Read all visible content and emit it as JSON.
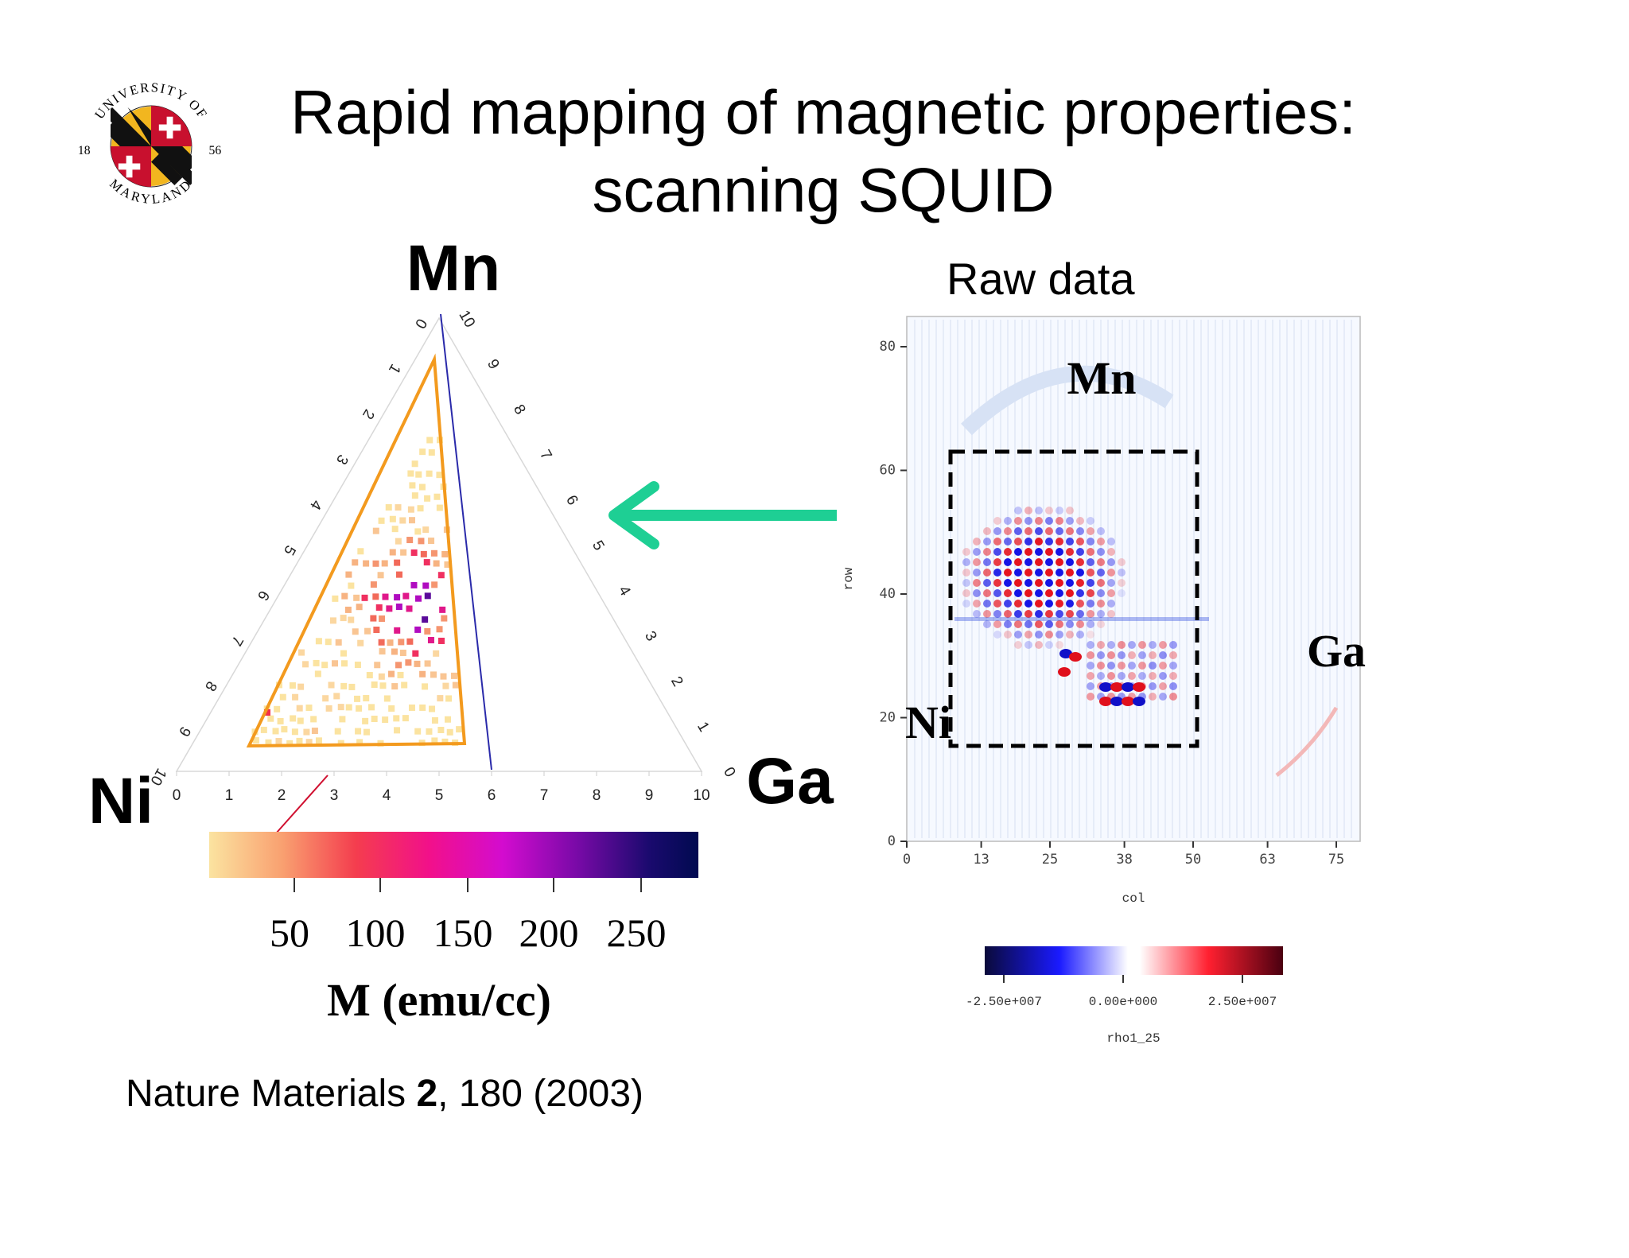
{
  "slide": {
    "title_line1": "Rapid mapping of magnetic properties:",
    "title_line2": "scanning SQUID",
    "citation_prefix": "Nature Materials ",
    "citation_bold": "2",
    "citation_suffix": ", 180 (2003)"
  },
  "seal": {
    "arc_text_top": "UNIVERSITY OF",
    "arc_text_bottom": "MARYLAND",
    "year_left": "18",
    "year_right": "56",
    "colors": {
      "red": "#c8102e",
      "gold": "#f2b61f",
      "black": "#111111",
      "white": "#ffffff"
    }
  },
  "ternary": {
    "vertex_top": "Mn",
    "vertex_left": "Ni",
    "vertex_right": "Ga",
    "bottom_ticks": [
      "0",
      "1",
      "2",
      "3",
      "4",
      "5",
      "6",
      "7",
      "8",
      "9",
      "10"
    ],
    "left_ticks": [
      "0",
      "1",
      "2",
      "3",
      "4",
      "5",
      "6",
      "7",
      "8",
      "9",
      "10"
    ],
    "right_ticks": [
      "10",
      "9",
      "8",
      "7",
      "6",
      "5",
      "4",
      "3",
      "2",
      "1",
      "0"
    ],
    "region_color": "#f39a1e",
    "line_color": "#2a2aaa",
    "colorbar": {
      "tick_labels": [
        "50",
        "100",
        "150",
        "200",
        "250"
      ],
      "label": "M (emu/cc)",
      "gradient": [
        "#fbe3a0",
        "#f9a070",
        "#f43d4e",
        "#f2108a",
        "#d30ccf",
        "#7a0aa8",
        "#1a0a6e",
        "#000a50"
      ]
    }
  },
  "arrow": {
    "color": "#1ecf94"
  },
  "raw": {
    "title": "Raw data",
    "ylabel": "row",
    "xlabel": "col",
    "y_ticks": [
      "80",
      "60",
      "40",
      "20",
      "0"
    ],
    "x_ticks": [
      "0",
      "13",
      "25",
      "38",
      "50",
      "63",
      "75"
    ],
    "label_mn": "Mn",
    "label_ni": "Ni",
    "label_ga": "Ga",
    "colorbar": {
      "tick_labels": [
        "-2.50e+007",
        "0.00e+000",
        "2.50e+007"
      ],
      "label": "rho1_25",
      "gradient": [
        "#0a0a3a",
        "#1a1aff",
        "#ffffff",
        "#ff2030",
        "#4a0010"
      ]
    }
  }
}
